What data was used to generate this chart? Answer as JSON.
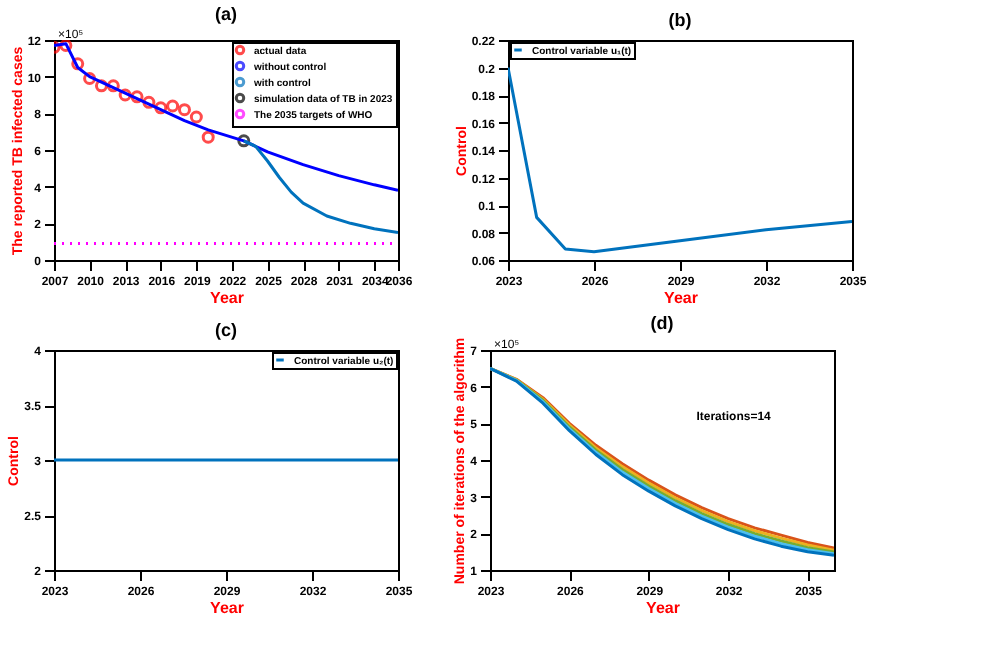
{
  "chart_data": [
    {
      "type": "line",
      "title": "(a)",
      "xlabel": "Year",
      "ylabel": "The reported TB infected cases",
      "xlim": [
        2007,
        2036
      ],
      "xticks": [
        2007,
        2010,
        2013,
        2016,
        2019,
        2022,
        2025,
        2028,
        2031,
        2034,
        2036
      ],
      "ylim": [
        0,
        12
      ],
      "yticks": [
        0,
        2,
        4,
        6,
        8,
        10,
        12
      ],
      "legend": "top right",
      "grid": false,
      "annotations": [
        "×10⁵"
      ],
      "series": [
        {
          "name": "actual data",
          "type": "scatter",
          "marker": "circle",
          "color": "#ff0000",
          "x": [
            2007,
            2008,
            2009,
            2010,
            2011,
            2012,
            2013,
            2014,
            2015,
            2016,
            2017,
            2018,
            2019,
            2020
          ],
          "values": [
            11.6,
            11.7,
            10.7,
            9.9,
            9.5,
            9.5,
            9.0,
            8.9,
            8.6,
            8.3,
            8.4,
            8.2,
            7.8,
            6.7
          ]
        },
        {
          "name": "without control",
          "type": "line",
          "color": "#0000ff",
          "x": [
            2007,
            2008,
            2009,
            2010,
            2012,
            2015,
            2018,
            2020,
            2023,
            2025,
            2028,
            2031,
            2034,
            2036
          ],
          "values": [
            11.7,
            11.8,
            10.5,
            10.0,
            9.4,
            8.5,
            7.6,
            7.1,
            6.5,
            5.9,
            5.2,
            4.6,
            4.1,
            3.8
          ]
        },
        {
          "name": "with control",
          "type": "line",
          "color": "#0072bd",
          "x": [
            2023,
            2024,
            2025,
            2026,
            2027,
            2028,
            2030,
            2032,
            2034,
            2036
          ],
          "values": [
            6.5,
            6.2,
            5.4,
            4.5,
            3.7,
            3.1,
            2.4,
            2.0,
            1.7,
            1.5
          ]
        },
        {
          "name": "simulation data of TB in 2023",
          "type": "scatter",
          "marker": "circle",
          "color": "#000000",
          "x": [
            2023
          ],
          "values": [
            6.5
          ]
        },
        {
          "name": "The 2035 targets of WHO",
          "type": "line",
          "line_style": "dotted",
          "color": "#ff00ff",
          "x": [
            2007,
            2036
          ],
          "values": [
            0.9,
            0.9
          ]
        }
      ]
    },
    {
      "type": "line",
      "title": "(b)",
      "xlabel": "Year",
      "ylabel": "Control",
      "xlim": [
        2023,
        2035
      ],
      "xticks": [
        2023,
        2026,
        2029,
        2032,
        2035
      ],
      "ylim": [
        0.06,
        0.22
      ],
      "yticks": [
        0.06,
        0.08,
        0.1,
        0.12,
        0.14,
        0.16,
        0.18,
        0.2,
        0.22
      ],
      "legend": "top left",
      "grid": false,
      "series": [
        {
          "name": "Control variable u₁(t)",
          "type": "line",
          "color": "#0072bd",
          "x": [
            2023,
            2024,
            2025,
            2026,
            2029,
            2032,
            2035
          ],
          "values": [
            0.2,
            0.091,
            0.068,
            0.066,
            0.074,
            0.082,
            0.088
          ]
        }
      ]
    },
    {
      "type": "line",
      "title": "(c)",
      "xlabel": "Year",
      "ylabel": "Control",
      "xlim": [
        2023,
        2035
      ],
      "xticks": [
        2023,
        2026,
        2029,
        2032,
        2035
      ],
      "ylim": [
        2,
        4
      ],
      "yticks": [
        2,
        2.5,
        3,
        3.5,
        4
      ],
      "legend": "top right",
      "grid": false,
      "series": [
        {
          "name": "Control variable u₂(t)",
          "type": "line",
          "color": "#0072bd",
          "x": [
            2023,
            2035
          ],
          "values": [
            3,
            3
          ]
        }
      ]
    },
    {
      "type": "line",
      "title": "(d)",
      "xlabel": "Year",
      "ylabel": "Number of iterations of the algorithm",
      "xlim": [
        2023,
        2036
      ],
      "xticks": [
        2023,
        2026,
        2029,
        2032,
        2035
      ],
      "ylim": [
        1,
        7
      ],
      "yticks": [
        1,
        2,
        3,
        4,
        5,
        6,
        7
      ],
      "legend": false,
      "grid": false,
      "annotations": [
        "×10⁵",
        "Iterations=14"
      ],
      "x": [
        2023,
        2024,
        2025,
        2026,
        2027,
        2028,
        2029,
        2030,
        2031,
        2032,
        2033,
        2034,
        2035,
        2036
      ],
      "series": [
        {
          "type": "line",
          "color": "#d95319",
          "values": [
            6.5,
            6.2,
            5.7,
            5.0,
            4.4,
            3.9,
            3.45,
            3.05,
            2.7,
            2.4,
            2.15,
            1.95,
            1.75,
            1.6
          ]
        },
        {
          "type": "line",
          "color": "#edb120",
          "values": [
            6.5,
            6.19,
            5.66,
            4.95,
            4.33,
            3.82,
            3.37,
            2.97,
            2.62,
            2.32,
            2.07,
            1.87,
            1.68,
            1.54
          ]
        },
        {
          "type": "line",
          "color": "#77ac30",
          "values": [
            6.5,
            6.18,
            5.63,
            4.9,
            4.27,
            3.74,
            3.29,
            2.89,
            2.54,
            2.24,
            1.99,
            1.79,
            1.61,
            1.49
          ]
        },
        {
          "type": "line",
          "color": "#4dbeee",
          "values": [
            6.5,
            6.17,
            5.59,
            4.85,
            4.21,
            3.67,
            3.22,
            2.82,
            2.47,
            2.17,
            1.92,
            1.72,
            1.55,
            1.44
          ]
        },
        {
          "type": "line",
          "color": "#0072bd",
          "values": [
            6.5,
            6.15,
            5.55,
            4.8,
            4.15,
            3.6,
            3.15,
            2.75,
            2.4,
            2.1,
            1.85,
            1.65,
            1.5,
            1.4
          ]
        }
      ]
    }
  ]
}
